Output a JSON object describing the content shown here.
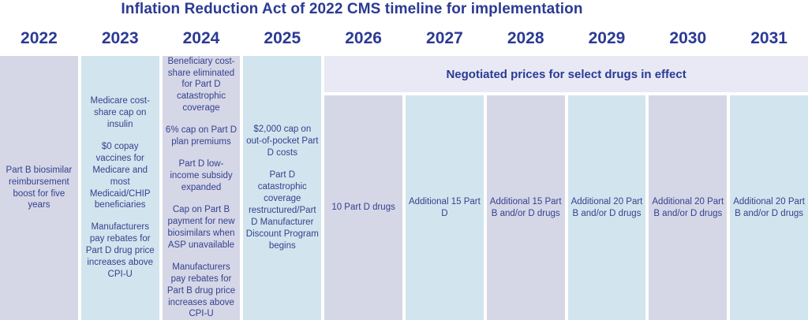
{
  "title": "Inflation Reduction Act of 2022 CMS timeline for implementation",
  "banner": {
    "label": "Negotiated prices for select drugs in effect"
  },
  "colors": {
    "navy": "#2b3a94",
    "body_text": "#35418f",
    "lavender": "#d5d7e7",
    "blue": "#d2e5ee",
    "banner_bg": "#e8e9f4",
    "background": "#ffffff"
  },
  "columns": [
    {
      "year": "2022",
      "tone": "lavender",
      "under_banner": false,
      "items": [
        "Part B biosimilar reimbursement boost for five years"
      ]
    },
    {
      "year": "2023",
      "tone": "blue",
      "under_banner": false,
      "items": [
        "Medicare cost-share cap on insulin",
        "$0 copay vaccines for Medicare and most Medicaid/CHIP beneficiaries",
        "Manufacturers pay rebates for Part D drug price increases above CPI-U"
      ]
    },
    {
      "year": "2024",
      "tone": "lavender",
      "under_banner": false,
      "items": [
        "Beneficiary cost-share eliminated for Part D catastrophic coverage",
        "6% cap on Part D plan premiums",
        "Part D low-income subsidy expanded",
        "Cap on Part B payment for new biosimilars when ASP unavailable",
        "Manufacturers pay rebates for Part B drug price increases above CPI-U"
      ]
    },
    {
      "year": "2025",
      "tone": "blue",
      "under_banner": false,
      "items": [
        "$2,000 cap on out-of-pocket Part D costs",
        "Part D catastrophic coverage restructured/Part D Manufacturer Discount Program begins"
      ]
    },
    {
      "year": "2026",
      "tone": "lavender",
      "under_banner": true,
      "items": [
        "10 Part D drugs"
      ]
    },
    {
      "year": "2027",
      "tone": "blue",
      "under_banner": true,
      "items": [
        "Additional 15 Part D"
      ]
    },
    {
      "year": "2028",
      "tone": "lavender",
      "under_banner": true,
      "items": [
        "Additional 15 Part B and/or D drugs"
      ]
    },
    {
      "year": "2029",
      "tone": "blue",
      "under_banner": true,
      "items": [
        "Additional 20 Part B and/or D drugs"
      ]
    },
    {
      "year": "2030",
      "tone": "lavender",
      "under_banner": true,
      "items": [
        "Additional 20 Part B and/or D drugs"
      ]
    },
    {
      "year": "2031",
      "tone": "blue",
      "under_banner": true,
      "items": [
        "Additional 20 Part B and/or D drugs"
      ]
    }
  ]
}
